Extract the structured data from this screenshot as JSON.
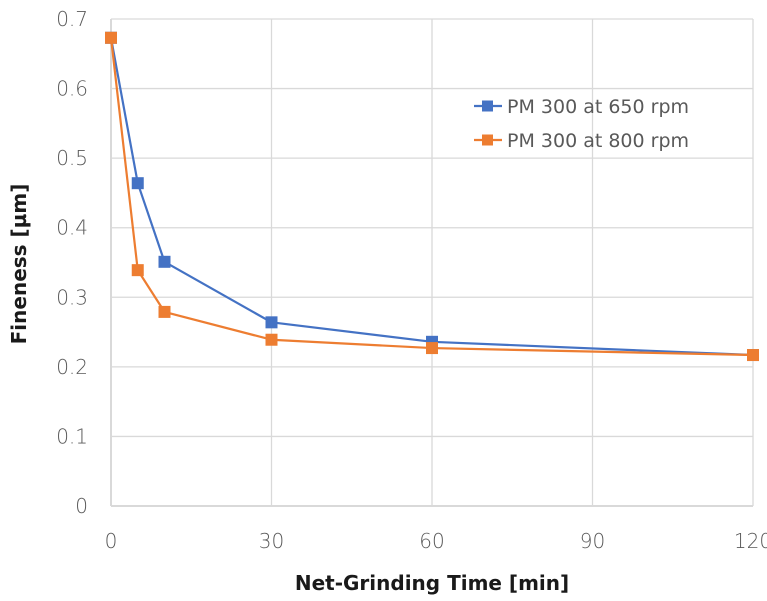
{
  "chart_data": {
    "type": "line",
    "title": "",
    "xlabel": "Net-Grinding Time [min]",
    "ylabel": "Fineness [µm]",
    "xlim": [
      0,
      120
    ],
    "ylim": [
      0,
      0.7
    ],
    "xticks": [
      0,
      30,
      60,
      90,
      120
    ],
    "yticks": [
      0,
      0.1,
      0.2,
      0.3,
      0.4,
      0.5,
      0.6,
      0.7
    ],
    "xtick_labels": [
      "0",
      "30",
      "60",
      "90",
      "120"
    ],
    "ytick_labels": [
      "0",
      "0.1",
      "0.2",
      "0.3",
      "0.4",
      "0.5",
      "0.6",
      "0.7"
    ],
    "grid": true,
    "legend_position": "top-right",
    "marker": "square",
    "series": [
      {
        "name": "PM 300 at 650 rpm",
        "color": "#4472C4",
        "x": [
          0,
          5,
          10,
          30,
          60,
          120
        ],
        "values": [
          0.673,
          0.464,
          0.351,
          0.264,
          0.236,
          0.217
        ]
      },
      {
        "name": "PM 300 at 800 rpm",
        "color": "#ED7D31",
        "x": [
          0,
          5,
          10,
          30,
          60,
          120
        ],
        "values": [
          0.673,
          0.339,
          0.279,
          0.239,
          0.227,
          0.217
        ]
      }
    ]
  },
  "colors": {
    "grid": "#d9d9d9",
    "axis_text": "#595959",
    "title_text": "#1a1a1a"
  }
}
